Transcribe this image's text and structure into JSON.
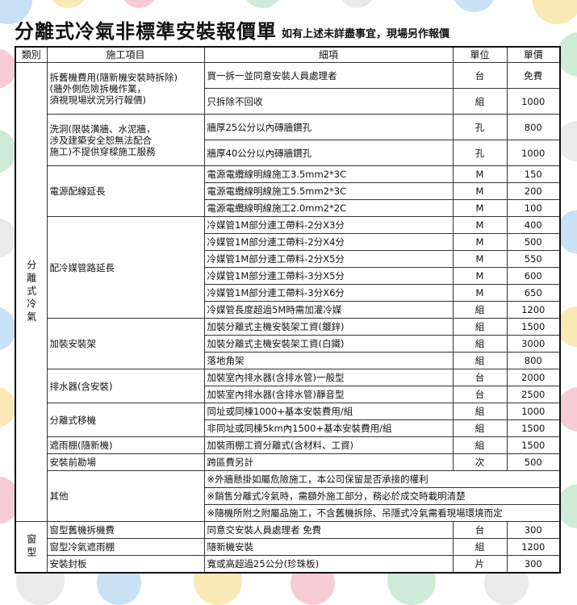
{
  "title": "分離式冷氣非標準安裝報價單",
  "subtitle": "如有上述未詳盡事宜，現場另作報價",
  "headers": [
    "類別",
    "施工項目",
    "細項",
    "單位",
    "單價"
  ],
  "categories": [
    {
      "label": "分離式冷氣",
      "items": [
        {
          "name": "拆舊機費用(隨新機安裝時拆除)\n(牆外側危險拆機作業，\n須視現場狀況另行報價)",
          "rows": [
            {
              "detail": "買一拆一並同意安裝人員處理者",
              "unit": "台",
              "price": "免費"
            },
            {
              "detail": "只拆除不回收",
              "unit": "組",
              "price": "1000"
            }
          ]
        },
        {
          "name": "洗洞(限裝潢牆、水泥牆，\n涉及建築安全恕無法配合\n施工)不提供穿樑施工服務",
          "rows": [
            {
              "detail": "牆厚25公分以內磚牆鑽孔",
              "unit": "孔",
              "price": "800"
            },
            {
              "detail": "牆厚40公分以內磚牆鑽孔",
              "unit": "孔",
              "price": "1000"
            }
          ]
        },
        {
          "name": "電源配線延長",
          "rows": [
            {
              "detail": "電源電纜線明線施工3.5mm2*3C",
              "unit": "M",
              "price": "150"
            },
            {
              "detail": "電源電纜線明線施工5.5mm2*3C",
              "unit": "M",
              "price": "200"
            },
            {
              "detail": "電源電纜線明線施工2.0mm2*2C",
              "unit": "M",
              "price": "100"
            }
          ]
        },
        {
          "name": "配冷媒管路延長",
          "rows": [
            {
              "detail": "冷媒管1M部分連工帶料-2分X3分",
              "unit": "M",
              "price": "400"
            },
            {
              "detail": "冷媒管1M部分連工帶料-2分X4分",
              "unit": "M",
              "price": "500"
            },
            {
              "detail": "冷媒管1M部分連工帶料-2分X5分",
              "unit": "M",
              "price": "550"
            },
            {
              "detail": "冷媒管1M部分連工帶料-3分X5分",
              "unit": "M",
              "price": "600"
            },
            {
              "detail": "冷媒管1M部分連工帶料-3分X6分",
              "unit": "M",
              "price": "650"
            },
            {
              "detail": "冷媒管長度超過5M時需加灌冷媒",
              "unit": "組",
              "price": "1200"
            }
          ]
        },
        {
          "name": "加裝安裝架",
          "rows": [
            {
              "detail": "加裝分離式主機安裝架工資(鍍鋅)",
              "unit": "組",
              "price": "1500"
            },
            {
              "detail": "加裝分離式主機安裝架工資(白鐵)",
              "unit": "組",
              "price": "3000"
            },
            {
              "detail": "落地角架",
              "unit": "組",
              "price": "800"
            }
          ]
        },
        {
          "name": "排水器(含安裝)",
          "rows": [
            {
              "detail": "加裝室內排水器(含排水管)一般型",
              "unit": "台",
              "price": "2000"
            },
            {
              "detail": "加裝室內排水器(含排水管)靜音型",
              "unit": "台",
              "price": "2500"
            }
          ]
        },
        {
          "name": "分離式移機",
          "rows": [
            {
              "detail": "同址或同棟1000+基本安裝費用/組",
              "unit": "組",
              "price": "1000"
            },
            {
              "detail": "非同址或同棟5km內1500+基本安裝費用/組",
              "unit": "組",
              "price": "1500"
            }
          ]
        },
        {
          "name": "遮雨棚(隨新機)",
          "rows": [
            {
              "detail": "加裝雨棚工資分離式(含材料、工資)",
              "unit": "組",
              "price": "1500"
            }
          ]
        },
        {
          "name": "安裝前勘場",
          "rows": [
            {
              "detail": "跨區費另計",
              "unit": "次",
              "price": "500"
            }
          ]
        },
        {
          "name": "其他",
          "rows": [
            {
              "detail": "※外牆懸掛如屬危險施工，本公司保留是否承接的權利"
            },
            {
              "detail": "※銷售分離式冷氣時，需額外施工部分，務必於成交時載明清楚"
            },
            {
              "detail": "※隨機所附之附屬品施工，不含舊機拆除、吊隱式冷氣需看現場環境而定"
            }
          ]
        }
      ]
    },
    {
      "label": "窗型",
      "items": [
        {
          "name": "窗型舊機拆機費",
          "rows": [
            {
              "detail": "同意交安裝人員處理者 免費",
              "unit": "台",
              "price": "300"
            }
          ]
        },
        {
          "name": "窗型冷氣遮雨棚",
          "rows": [
            {
              "detail": "隨新機安裝",
              "unit": "組",
              "price": "1200"
            }
          ]
        },
        {
          "name": "安裝封板",
          "rows": [
            {
              "detail": "寬或高超過25公分(珍珠板)",
              "unit": "片",
              "price": "300"
            }
          ]
        }
      ]
    }
  ]
}
